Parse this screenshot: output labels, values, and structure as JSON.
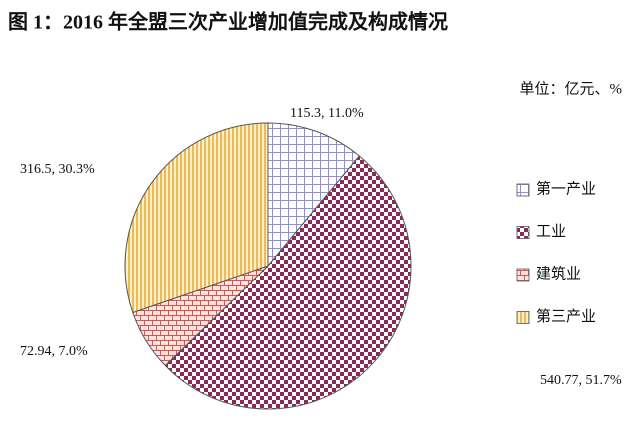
{
  "chart_data": {
    "type": "pie",
    "title": "图 1：2016 年全盟三次产业增加值完成及构成情况",
    "unit": "单位：亿元、%",
    "categories": [
      "第一产业",
      "工业",
      "建筑业",
      "第三产业"
    ],
    "values": [
      115.3,
      540.77,
      72.94,
      316.5
    ],
    "value_labels": [
      "115.3, 11.0%",
      "540.77, 51.7%",
      "72.94, 7.0%",
      "316.5, 30.3%"
    ],
    "colors": [
      "#8c8ce0",
      "#8a2b57",
      "#d9534f",
      "#e3a93a"
    ]
  }
}
